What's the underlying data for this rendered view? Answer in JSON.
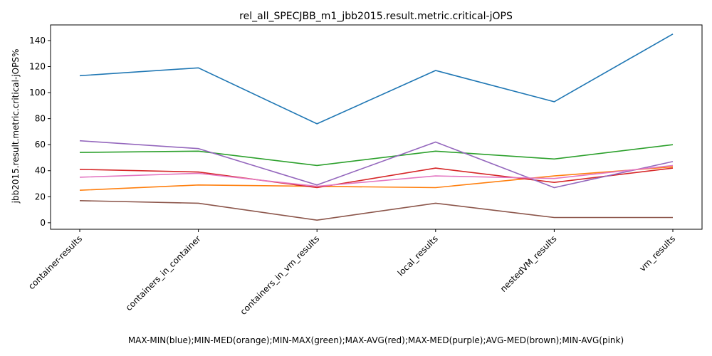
{
  "chart_data": {
    "type": "line",
    "title": "rel_all_SPECJBB_m1_jbb2015.result.metric.critical-jOPS",
    "xlabel": "MAX-MIN(blue);MIN-MED(orange);MIN-MAX(green);MAX-AVG(red);MAX-MED(purple);AVG-MED(brown);MIN-AVG(pink)",
    "ylabel": "jbb2015.result.metric.critical-jOPS%",
    "categories": [
      "container-results",
      "containers_in_container",
      "containers_in_vm_results",
      "local_results",
      "nestedVM_results",
      "vm_results"
    ],
    "yticks": [
      0,
      20,
      40,
      60,
      80,
      100,
      120,
      140
    ],
    "ylim": [
      -5,
      152
    ],
    "grid": false,
    "series": [
      {
        "color": "#1f77b4",
        "values": [
          113,
          119,
          76,
          117,
          93,
          145
        ]
      },
      {
        "color": "#ff7f0e",
        "values": [
          25,
          29,
          28,
          27,
          36,
          43
        ]
      },
      {
        "color": "#2ca02c",
        "values": [
          54,
          55,
          44,
          55,
          49,
          60
        ]
      },
      {
        "color": "#d62728",
        "values": [
          41,
          39,
          27,
          42,
          31,
          42
        ]
      },
      {
        "color": "#9467bd",
        "values": [
          63,
          57,
          29,
          62,
          27,
          47
        ]
      },
      {
        "color": "#8c564b",
        "values": [
          17,
          15,
          2,
          15,
          4,
          4
        ]
      },
      {
        "color": "#e377c2",
        "values": [
          35,
          38,
          28,
          36,
          34,
          44
        ]
      }
    ]
  }
}
